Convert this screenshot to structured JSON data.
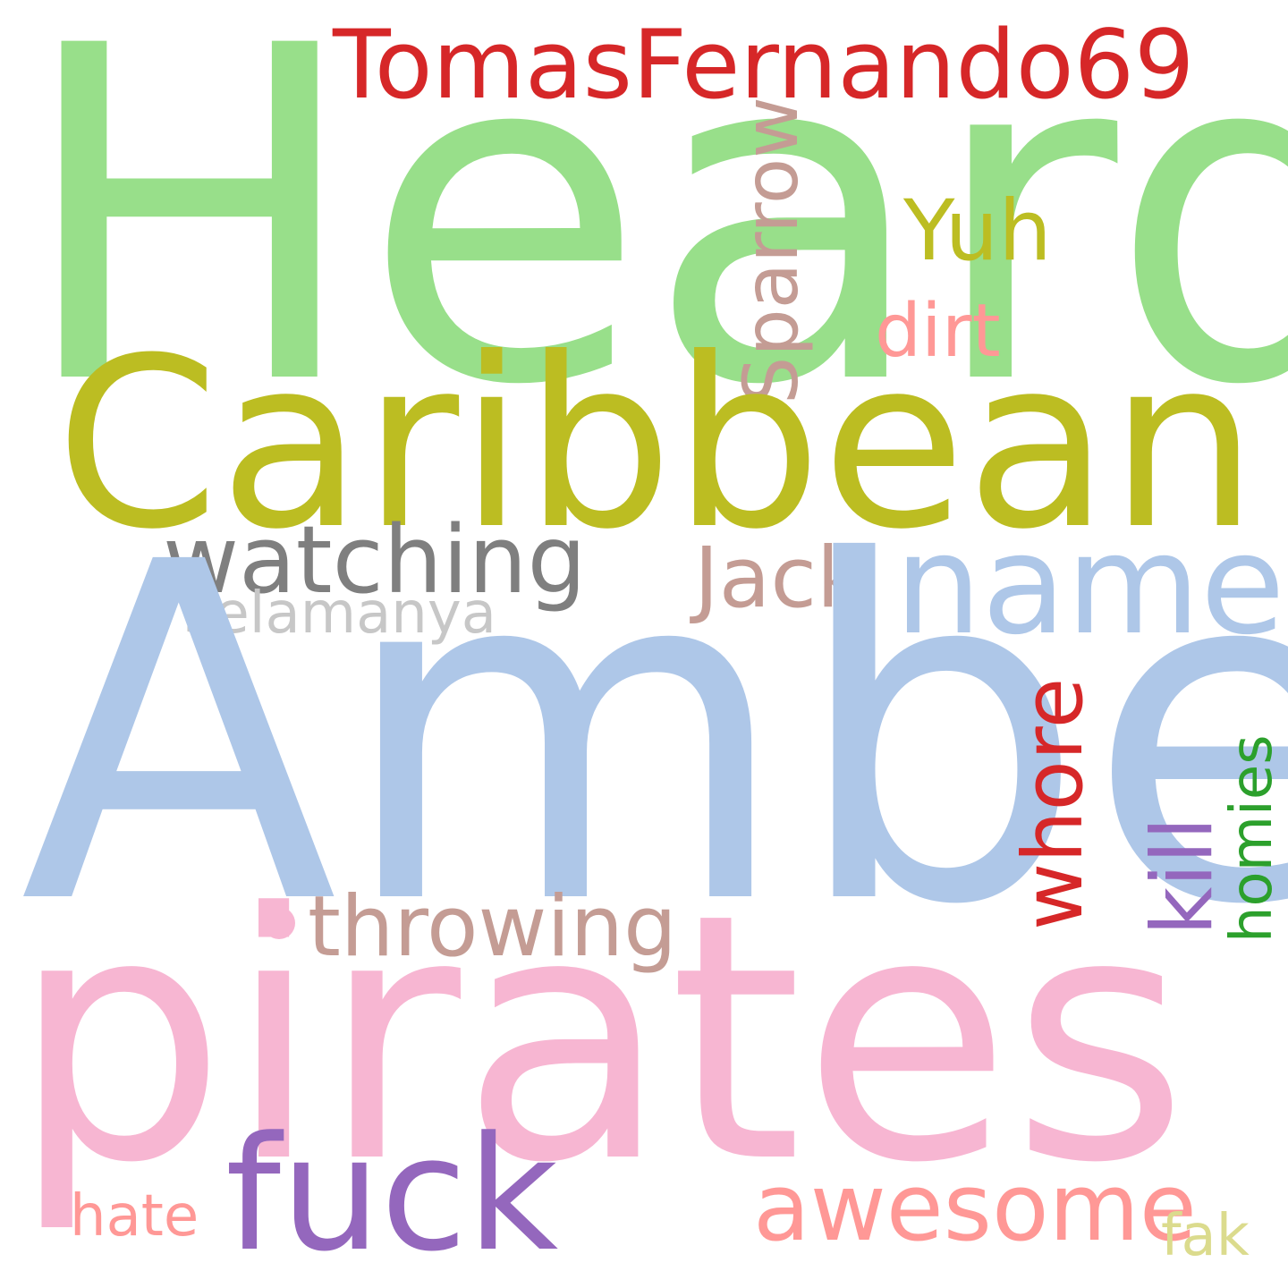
{
  "words": {
    "heard": {
      "text": "Heard",
      "color": "#98df8a"
    },
    "amber": {
      "text": "Amber",
      "color": "#aec7e8"
    },
    "pirates": {
      "text": "pirates",
      "color": "#f7b6d2"
    },
    "caribbean": {
      "text": "Caribbean",
      "color": "#bcbd22"
    },
    "tomas": {
      "text": "TomasFernando69",
      "color": "#d62728"
    },
    "watching": {
      "text": "watching",
      "color": "#7f7f7f"
    },
    "named": {
      "text": "named",
      "color": "#aec7e8"
    },
    "fuck": {
      "text": "fuck",
      "color": "#9467bd"
    },
    "awesome": {
      "text": "awesome",
      "color": "#ff9896"
    },
    "sparrow": {
      "text": "Sparrow",
      "color": "#c49c94"
    },
    "yuh": {
      "text": "Yuh",
      "color": "#bcbd22"
    },
    "dirt": {
      "text": "dirt",
      "color": "#ff9896"
    },
    "jack": {
      "text": "Jack",
      "color": "#c49c94"
    },
    "selamanya": {
      "text": "selamanya",
      "color": "#c7c7c7"
    },
    "whore": {
      "text": "whore",
      "color": "#d62728"
    },
    "kill": {
      "text": "kill",
      "color": "#9467bd"
    },
    "homies": {
      "text": "homies",
      "color": "#2ca02c"
    },
    "throwing": {
      "text": "throwing",
      "color": "#c49c94"
    },
    "hate": {
      "text": "hate",
      "color": "#ff9896"
    },
    "fak": {
      "text": "fak",
      "color": "#dbdb8d"
    }
  },
  "dot_color": "#f7b6d2"
}
